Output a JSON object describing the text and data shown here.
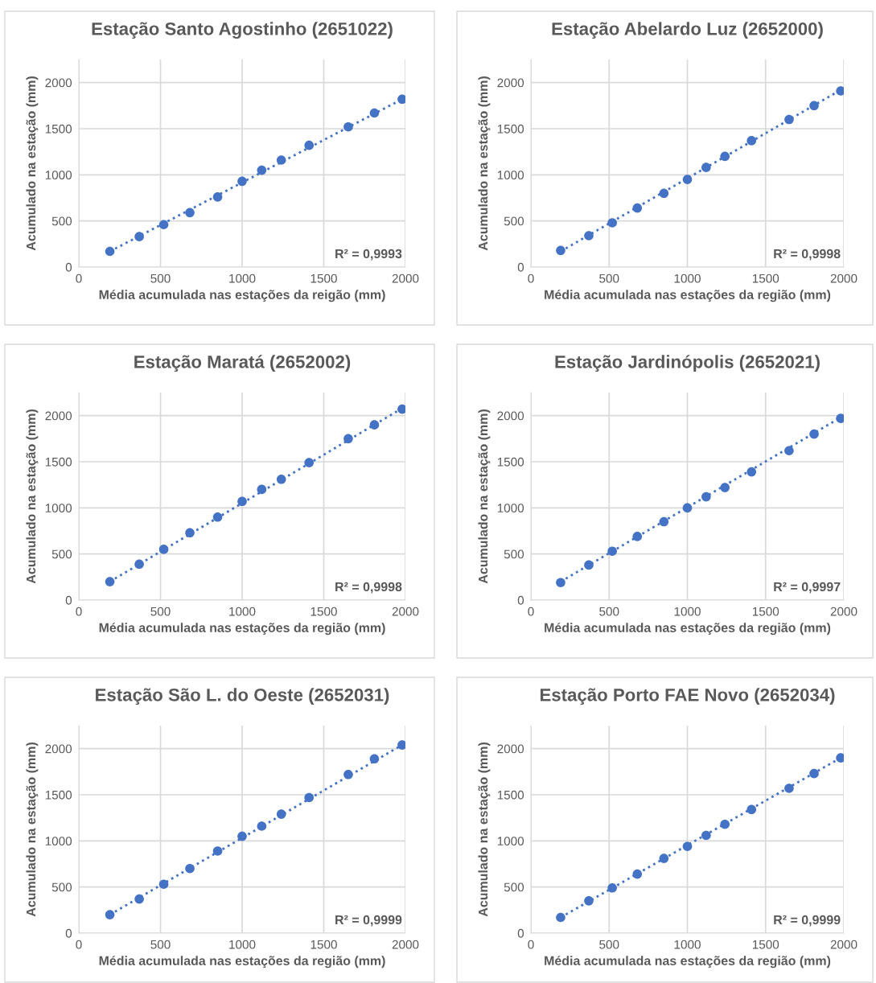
{
  "chart_data": [
    {
      "type": "scatter",
      "title": "Estação Santo Agostinho (2651022)",
      "xlabel": "Média acumulada nas estações da reigão (mm)",
      "ylabel": "Acumulado na estação (mm)",
      "xlim": [
        0,
        2000
      ],
      "xticks": [
        0,
        500,
        1000,
        1500,
        2000
      ],
      "ylim": [
        0,
        2250
      ],
      "yticks": [
        0,
        500,
        1000,
        1500,
        2000
      ],
      "grid": true,
      "legend": false,
      "annotations": [
        "R² = 0,9993"
      ],
      "series": [
        {
          "marker": "circle",
          "color": "#4472c4",
          "x": [
            190,
            370,
            520,
            680,
            850,
            1000,
            1120,
            1240,
            1410,
            1650,
            1810,
            1980
          ],
          "values": [
            170,
            330,
            460,
            590,
            760,
            930,
            1050,
            1160,
            1320,
            1520,
            1670,
            1820
          ]
        },
        {
          "type": "line",
          "marker": "none",
          "line_style": "dotted",
          "color": "#4472c4",
          "x": [
            190,
            1980
          ],
          "values": [
            170,
            1820
          ]
        }
      ]
    },
    {
      "type": "scatter",
      "title": "Estação Abelardo Luz (2652000)",
      "xlabel": "Média acumulada nas estações da região (mm)",
      "ylabel": "Acumulado na estação (mm)",
      "xlim": [
        0,
        2000
      ],
      "xticks": [
        0,
        500,
        1000,
        1500,
        2000
      ],
      "ylim": [
        0,
        2250
      ],
      "yticks": [
        0,
        500,
        1000,
        1500,
        2000
      ],
      "grid": true,
      "legend": false,
      "annotations": [
        "R² = 0,9998"
      ],
      "series": [
        {
          "marker": "circle",
          "color": "#4472c4",
          "x": [
            190,
            370,
            520,
            680,
            850,
            1000,
            1120,
            1240,
            1410,
            1650,
            1810,
            1980
          ],
          "values": [
            180,
            340,
            480,
            640,
            800,
            950,
            1080,
            1200,
            1370,
            1600,
            1750,
            1910
          ]
        },
        {
          "type": "line",
          "marker": "none",
          "line_style": "dotted",
          "color": "#4472c4",
          "x": [
            190,
            1980
          ],
          "values": [
            170,
            1920
          ]
        }
      ]
    },
    {
      "type": "scatter",
      "title": "Estação Maratá (2652002)",
      "xlabel": "Média acumulada nas estações da região (mm)",
      "ylabel": "Acumulado na estação (mm)",
      "xlim": [
        0,
        2000
      ],
      "xticks": [
        0,
        500,
        1000,
        1500,
        2000
      ],
      "ylim": [
        0,
        2250
      ],
      "yticks": [
        0,
        500,
        1000,
        1500,
        2000
      ],
      "grid": true,
      "legend": false,
      "annotations": [
        "R² = 0,9998"
      ],
      "series": [
        {
          "marker": "circle",
          "color": "#4472c4",
          "x": [
            190,
            370,
            520,
            680,
            850,
            1000,
            1120,
            1240,
            1410,
            1650,
            1810,
            1980
          ],
          "values": [
            200,
            390,
            550,
            730,
            900,
            1070,
            1200,
            1310,
            1490,
            1750,
            1900,
            2070
          ]
        },
        {
          "type": "line",
          "marker": "none",
          "line_style": "dotted",
          "color": "#4472c4",
          "x": [
            190,
            1980
          ],
          "values": [
            200,
            2080
          ]
        }
      ]
    },
    {
      "type": "scatter",
      "title": "Estação Jardinópolis (2652021)",
      "xlabel": "Média acumulada nas estações da região (mm)",
      "ylabel": "Acumulado na estação (mm)",
      "xlim": [
        0,
        2000
      ],
      "xticks": [
        0,
        500,
        1000,
        1500,
        2000
      ],
      "ylim": [
        0,
        2250
      ],
      "yticks": [
        0,
        500,
        1000,
        1500,
        2000
      ],
      "grid": true,
      "legend": false,
      "annotations": [
        "R² = 0,9997"
      ],
      "series": [
        {
          "marker": "circle",
          "color": "#4472c4",
          "x": [
            190,
            370,
            520,
            680,
            850,
            1000,
            1120,
            1240,
            1410,
            1650,
            1810,
            1980
          ],
          "values": [
            190,
            380,
            530,
            690,
            850,
            1000,
            1120,
            1220,
            1390,
            1620,
            1800,
            1970
          ]
        },
        {
          "type": "line",
          "marker": "none",
          "line_style": "dotted",
          "color": "#4472c4",
          "x": [
            190,
            1980
          ],
          "values": [
            200,
            1980
          ]
        }
      ]
    },
    {
      "type": "scatter",
      "title": "Estação São L. do Oeste (2652031)",
      "xlabel": "Média acumulada nas estações da região (mm)",
      "ylabel": "Acumulado na estação (mm)",
      "xlim": [
        0,
        2000
      ],
      "xticks": [
        0,
        500,
        1000,
        1500,
        2000
      ],
      "ylim": [
        0,
        2250
      ],
      "yticks": [
        0,
        500,
        1000,
        1500,
        2000
      ],
      "grid": true,
      "legend": false,
      "annotations": [
        "R² = 0,9999"
      ],
      "series": [
        {
          "marker": "circle",
          "color": "#4472c4",
          "x": [
            190,
            370,
            520,
            680,
            850,
            1000,
            1120,
            1240,
            1410,
            1650,
            1810,
            1980
          ],
          "values": [
            200,
            370,
            530,
            700,
            890,
            1050,
            1160,
            1290,
            1470,
            1720,
            1890,
            2040
          ]
        },
        {
          "type": "line",
          "marker": "none",
          "line_style": "dotted",
          "color": "#4472c4",
          "x": [
            190,
            1980
          ],
          "values": [
            200,
            2040
          ]
        }
      ]
    },
    {
      "type": "scatter",
      "title": "Estação Porto FAE Novo (2652034)",
      "xlabel": "Média acumulada nas estações da região (mm)",
      "ylabel": "Acumulado na estação (mm)",
      "xlim": [
        0,
        2000
      ],
      "xticks": [
        0,
        500,
        1000,
        1500,
        2000
      ],
      "ylim": [
        0,
        2250
      ],
      "yticks": [
        0,
        500,
        1000,
        1500,
        2000
      ],
      "grid": true,
      "legend": false,
      "annotations": [
        "R² = 0,9999"
      ],
      "series": [
        {
          "marker": "circle",
          "color": "#4472c4",
          "x": [
            190,
            370,
            520,
            680,
            850,
            1000,
            1120,
            1240,
            1410,
            1650,
            1810,
            1980
          ],
          "values": [
            170,
            350,
            490,
            640,
            810,
            940,
            1060,
            1180,
            1340,
            1570,
            1730,
            1900
          ]
        },
        {
          "type": "line",
          "marker": "none",
          "line_style": "dotted",
          "color": "#4472c4",
          "x": [
            190,
            1980
          ],
          "values": [
            170,
            1900
          ]
        }
      ]
    }
  ]
}
